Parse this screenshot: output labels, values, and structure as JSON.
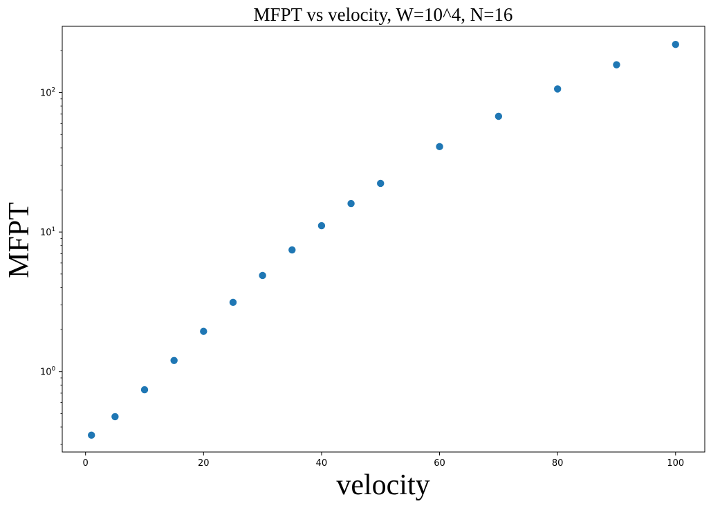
{
  "chart_data": {
    "type": "scatter",
    "title": "MFPT vs velocity, W=10^4, N=16",
    "xlabel": "velocity",
    "ylabel": "MFPT",
    "xlim": [
      -3.95,
      104.95
    ],
    "ylim": [
      0.265,
      298
    ],
    "yscale": "log",
    "grid": false,
    "x_ticks": [
      {
        "value": 0,
        "label": "0"
      },
      {
        "value": 20,
        "label": "20"
      },
      {
        "value": 40,
        "label": "40"
      },
      {
        "value": 60,
        "label": "60"
      },
      {
        "value": 80,
        "label": "80"
      },
      {
        "value": 100,
        "label": "100"
      }
    ],
    "y_ticks": [
      {
        "value": 1,
        "base": "10",
        "exp": "0"
      },
      {
        "value": 10,
        "base": "10",
        "exp": "1"
      },
      {
        "value": 100,
        "base": "10",
        "exp": "2"
      }
    ],
    "marker_color": "#1f77b4",
    "series": [
      {
        "x": [
          1,
          5,
          10,
          15,
          20,
          25,
          30,
          35,
          40,
          45,
          50,
          60,
          70,
          80,
          90,
          100
        ],
        "y": [
          0.35,
          0.475,
          0.74,
          1.2,
          1.94,
          3.13,
          4.88,
          7.44,
          11.1,
          16.0,
          22.3,
          40.9,
          67.5,
          106,
          158,
          221
        ]
      }
    ]
  }
}
